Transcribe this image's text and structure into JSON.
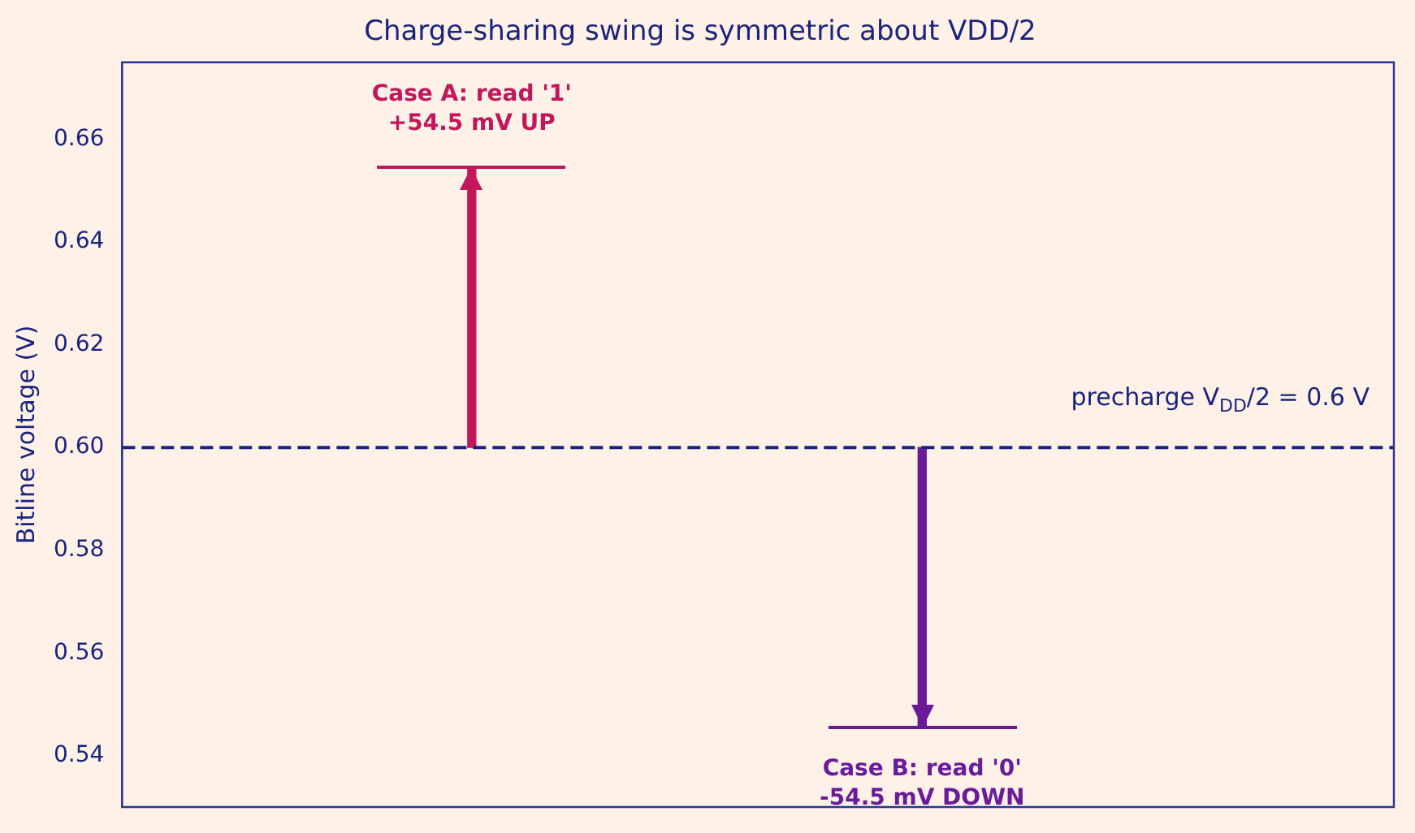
{
  "chart_data": {
    "type": "bar",
    "title": "Charge-sharing swing is symmetric about VDD/2",
    "ylabel": "Bitline voltage (V)",
    "categories": [
      null,
      null
    ],
    "base": [
      0.6,
      0.6
    ],
    "values": [
      0.0545,
      -0.0545
    ],
    "colors": [
      "#c2185b",
      "#6a1b9a"
    ],
    "value_labels": [
      "Case A: read '1'\n+54.5 mV UP",
      "Case B: read '0'\n-54.5 mV DOWN"
    ],
    "ylim": [
      0.53,
      0.675
    ],
    "yticks": [
      0.54,
      0.56,
      0.58,
      {
        "value": 0.6,
        "label": "0.60"
      },
      0.62,
      0.64,
      0.66
    ],
    "ref_lines": [
      {
        "axis": "y",
        "value": 0.6,
        "label": "precharge V$_{DD}$/2 = 0.6 V",
        "color": "#1a237e",
        "line_style": "dashed"
      }
    ],
    "grid": false,
    "legend": false,
    "tick_labels": "y"
  }
}
